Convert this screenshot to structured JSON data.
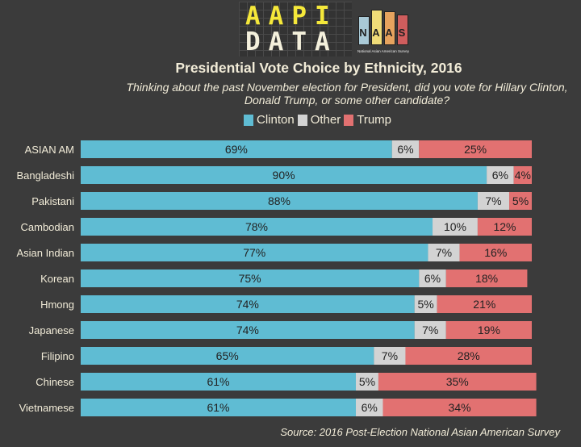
{
  "logo": {
    "line1": "AAPI",
    "line2": "DATA",
    "naas_letters": [
      "N",
      "A",
      "A",
      "S"
    ],
    "naas_colors": [
      "#a9c9d6",
      "#f0dc78",
      "#e6a35e",
      "#cf5d5d"
    ],
    "naas_caption": "National Asian American Survey"
  },
  "chart_data": {
    "type": "bar",
    "orientation": "horizontal",
    "stacked": true,
    "title": "Presidential Vote Choice by Ethnicity, 2016",
    "subtitle": "Thinking about the past November election for President, did you vote for Hillary Clinton, Donald Trump, or some other candidate?",
    "xlabel": "",
    "ylabel": "",
    "xlim": [
      0,
      100
    ],
    "grid": false,
    "legend_position": "top",
    "categories": [
      "ASIAN AM",
      "Bangladeshi",
      "Pakistani",
      "Cambodian",
      "Asian Indian",
      "Korean",
      "Hmong",
      "Japanese",
      "Filipino",
      "Chinese",
      "Vietnamese"
    ],
    "series": [
      {
        "name": "Clinton",
        "color": "#5fbcd3",
        "values": [
          69,
          90,
          88,
          78,
          77,
          75,
          74,
          74,
          65,
          61,
          61
        ]
      },
      {
        "name": "Other",
        "color": "#d3d3d3",
        "values": [
          6,
          6,
          7,
          10,
          7,
          6,
          5,
          7,
          7,
          5,
          6
        ]
      },
      {
        "name": "Trump",
        "color": "#e27171",
        "values": [
          25,
          4,
          5,
          12,
          16,
          18,
          21,
          19,
          28,
          35,
          34
        ]
      }
    ],
    "value_suffix": "%",
    "source": "Source: 2016 Post-Election National Asian American Survey"
  }
}
